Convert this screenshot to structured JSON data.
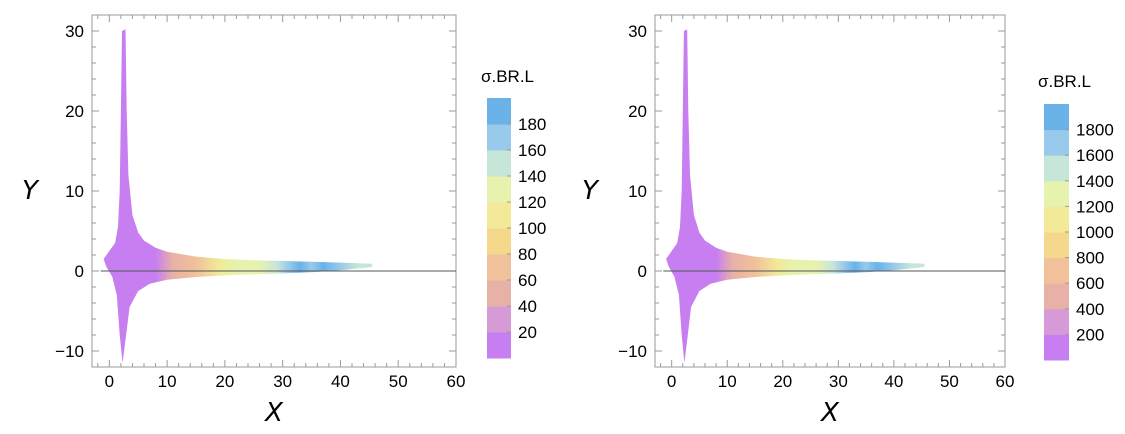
{
  "chart_data": [
    {
      "type": "area",
      "title": "",
      "xlabel": "X",
      "ylabel": "Y",
      "xlim": [
        -3,
        60
      ],
      "ylim": [
        -12,
        32
      ],
      "xticks": [
        0,
        10,
        20,
        30,
        40,
        50,
        60
      ],
      "yticks": [
        -10,
        0,
        10,
        20,
        30
      ],
      "grid": false,
      "reference_line_y": 0,
      "upper_boundary": [
        [
          -1,
          1.5
        ],
        [
          0,
          2.5
        ],
        [
          1,
          3.5
        ],
        [
          1.5,
          5.5
        ],
        [
          1.8,
          10
        ],
        [
          2.0,
          20
        ],
        [
          2.2,
          30
        ],
        [
          2.8,
          30.2
        ],
        [
          3.0,
          20
        ],
        [
          3.3,
          12
        ],
        [
          4,
          7
        ],
        [
          5,
          4.8
        ],
        [
          6,
          3.8
        ],
        [
          8,
          2.9
        ],
        [
          10,
          2.4
        ],
        [
          15,
          1.8
        ],
        [
          20,
          1.5
        ],
        [
          25,
          1.35
        ],
        [
          30,
          1.25
        ],
        [
          35,
          1.15
        ],
        [
          40,
          1.05
        ],
        [
          45.5,
          0.9
        ]
      ],
      "lower_boundary": [
        [
          -1,
          1.5
        ],
        [
          -0.5,
          0.5
        ],
        [
          0.5,
          -0.7
        ],
        [
          1.3,
          -3
        ],
        [
          1.8,
          -8
        ],
        [
          2.3,
          -11.5
        ],
        [
          2.9,
          -8
        ],
        [
          3.5,
          -4.5
        ],
        [
          5,
          -2.5
        ],
        [
          7,
          -1.6
        ],
        [
          10,
          -1.1
        ],
        [
          15,
          -0.75
        ],
        [
          20,
          -0.55
        ],
        [
          25,
          -0.4
        ],
        [
          30,
          -0.3
        ],
        [
          35,
          -0.15
        ],
        [
          40,
          0.1
        ],
        [
          45.5,
          0.5
        ]
      ],
      "color_variable": "σ.BR.L",
      "legend_title": "σ.BR.L",
      "legend_placement": "right",
      "legend_ticks": [
        20,
        40,
        60,
        80,
        100,
        120,
        140,
        160,
        180
      ],
      "legend_range": [
        0,
        200
      ],
      "color_bands": [
        "#c77ef0",
        "#d69ad6",
        "#e8b1a8",
        "#f0c19a",
        "#f5d88c",
        "#f2ea98",
        "#e6f2ae",
        "#c6e6d8",
        "#98caeb",
        "#6ab2e8"
      ],
      "fill_gradient": [
        {
          "x": 5,
          "value": 0
        },
        {
          "x": 8,
          "value": 10
        },
        {
          "x": 11,
          "value": 40
        },
        {
          "x": 15,
          "value": 70
        },
        {
          "x": 19,
          "value": 100
        },
        {
          "x": 22,
          "value": 130
        },
        {
          "x": 26,
          "value": 120
        },
        {
          "x": 29,
          "value": 140
        },
        {
          "x": 31,
          "value": 160
        },
        {
          "x": 33,
          "value": 195
        },
        {
          "x": 35,
          "value": 170
        },
        {
          "x": 37,
          "value": 190
        },
        {
          "x": 40,
          "value": 160
        },
        {
          "x": 43,
          "value": 150
        },
        {
          "x": 45.5,
          "value": 155
        }
      ]
    },
    {
      "type": "area",
      "title": "",
      "xlabel": "X",
      "ylabel": "Y",
      "xlim": [
        -3,
        60
      ],
      "ylim": [
        -12,
        32
      ],
      "xticks": [
        0,
        10,
        20,
        30,
        40,
        50,
        60
      ],
      "yticks": [
        -10,
        0,
        10,
        20,
        30
      ],
      "grid": false,
      "reference_line_y": 0,
      "upper_boundary": [
        [
          -1,
          1.5
        ],
        [
          0,
          2.5
        ],
        [
          1,
          3.5
        ],
        [
          1.5,
          5.5
        ],
        [
          1.8,
          10
        ],
        [
          2.0,
          20
        ],
        [
          2.2,
          30
        ],
        [
          2.8,
          30.2
        ],
        [
          3.0,
          20
        ],
        [
          3.3,
          12
        ],
        [
          4,
          7
        ],
        [
          5,
          4.8
        ],
        [
          6,
          3.8
        ],
        [
          8,
          2.9
        ],
        [
          10,
          2.4
        ],
        [
          15,
          1.8
        ],
        [
          20,
          1.5
        ],
        [
          25,
          1.35
        ],
        [
          30,
          1.25
        ],
        [
          35,
          1.15
        ],
        [
          40,
          1.05
        ],
        [
          45.5,
          0.9
        ]
      ],
      "lower_boundary": [
        [
          -1,
          1.5
        ],
        [
          -0.5,
          0.5
        ],
        [
          0.5,
          -0.7
        ],
        [
          1.3,
          -3
        ],
        [
          1.8,
          -8
        ],
        [
          2.3,
          -11.5
        ],
        [
          2.9,
          -8
        ],
        [
          3.5,
          -4.5
        ],
        [
          5,
          -2.5
        ],
        [
          7,
          -1.6
        ],
        [
          10,
          -1.1
        ],
        [
          15,
          -0.75
        ],
        [
          20,
          -0.55
        ],
        [
          25,
          -0.4
        ],
        [
          30,
          -0.3
        ],
        [
          35,
          -0.15
        ],
        [
          40,
          0.1
        ],
        [
          45.5,
          0.5
        ]
      ],
      "color_variable": "σ.BR.L",
      "legend_title": "σ.BR.L",
      "legend_placement": "right",
      "legend_ticks": [
        200,
        400,
        600,
        800,
        1000,
        1200,
        1400,
        1600,
        1800
      ],
      "legend_range": [
        0,
        2000
      ],
      "color_bands": [
        "#c77ef0",
        "#d69ad6",
        "#e8b1a8",
        "#f0c19a",
        "#f5d88c",
        "#f2ea98",
        "#e6f2ae",
        "#c6e6d8",
        "#98caeb",
        "#6ab2e8"
      ],
      "fill_gradient": [
        {
          "x": 5,
          "value": 0
        },
        {
          "x": 8,
          "value": 100
        },
        {
          "x": 11,
          "value": 400
        },
        {
          "x": 15,
          "value": 700
        },
        {
          "x": 19,
          "value": 1000
        },
        {
          "x": 22,
          "value": 1300
        },
        {
          "x": 26,
          "value": 1200
        },
        {
          "x": 29,
          "value": 1400
        },
        {
          "x": 31,
          "value": 1600
        },
        {
          "x": 33,
          "value": 1950
        },
        {
          "x": 35,
          "value": 1700
        },
        {
          "x": 37,
          "value": 1900
        },
        {
          "x": 40,
          "value": 1600
        },
        {
          "x": 43,
          "value": 1500
        },
        {
          "x": 45.5,
          "value": 1550
        }
      ]
    }
  ]
}
